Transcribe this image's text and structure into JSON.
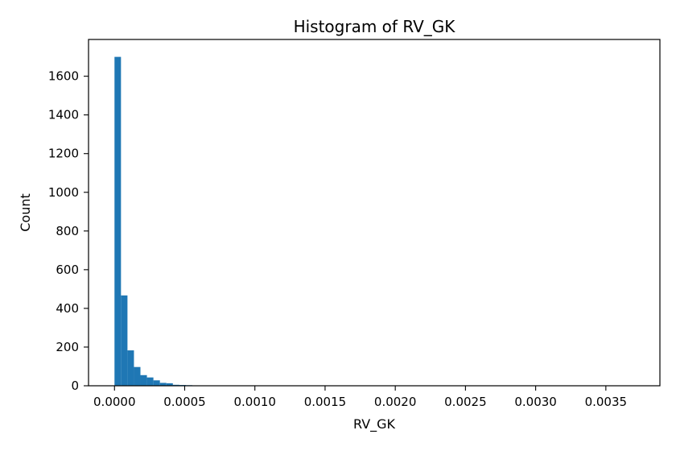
{
  "chart_data": {
    "type": "bar",
    "title": "Histogram of RV_GK",
    "xlabel": "RV_GK",
    "ylabel": "Count",
    "xlim": [
      -0.000185,
      0.003885
    ],
    "ylim": [
      0,
      1790
    ],
    "bin_width": 4.62e-05,
    "bin_starts": [
      0,
      4.62e-05,
      9.24e-05,
      0.0001386,
      0.0001848,
      0.000231,
      0.0002772,
      0.0003234,
      0.0003696,
      0.0004158,
      0.000462,
      0.0005082,
      0.0005544,
      0.0006006,
      0.0006468,
      0.000693
    ],
    "values": [
      1700,
      467,
      183,
      97,
      55,
      43,
      28,
      15,
      13,
      5,
      4,
      3,
      2,
      2,
      1,
      1
    ],
    "xticks": [
      0.0,
      0.0005,
      0.001,
      0.0015,
      0.002,
      0.0025,
      0.003,
      0.0035
    ],
    "xtick_labels": [
      "0.0000",
      "0.0005",
      "0.0010",
      "0.0015",
      "0.0020",
      "0.0025",
      "0.0030",
      "0.0035"
    ],
    "yticks": [
      0,
      200,
      400,
      600,
      800,
      1000,
      1200,
      1400,
      1600
    ],
    "ytick_labels": [
      "0",
      "200",
      "400",
      "600",
      "800",
      "1000",
      "1200",
      "1400",
      "1600"
    ],
    "grid": false,
    "bar_color": "#1f77b4"
  }
}
